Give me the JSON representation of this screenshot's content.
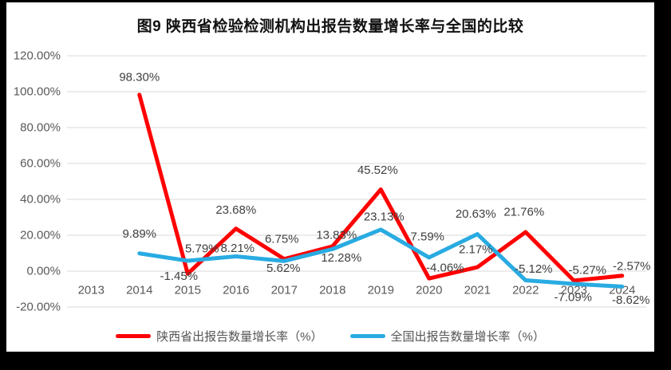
{
  "window": {
    "outer_background": "#000000",
    "canvas_background": "#ffffff"
  },
  "chart_data": {
    "type": "line",
    "title": "图9 陕西省检验检测机构出报告数量增长率与全国的比较",
    "xlabel": "",
    "ylabel": "",
    "categories": [
      "2013",
      "2014",
      "2015",
      "2016",
      "2017",
      "2018",
      "2019",
      "2020",
      "2021",
      "2022",
      "2023",
      "2024"
    ],
    "ylim": [
      -20,
      120
    ],
    "ytick_step": 20,
    "yticks": [
      {
        "value": 120,
        "label": "120.00%"
      },
      {
        "value": 100,
        "label": "100.00%"
      },
      {
        "value": 80,
        "label": "80.00%"
      },
      {
        "value": 60,
        "label": "60.00%"
      },
      {
        "value": 40,
        "label": "40.00%"
      },
      {
        "value": 20,
        "label": "20.00%"
      },
      {
        "value": 0,
        "label": "0.00%"
      },
      {
        "value": -20,
        "label": "-20.00%"
      }
    ],
    "grid": true,
    "grid_color": "#D9D9D9",
    "axis_text_color": "#595959",
    "label_text_color": "#404040",
    "legend_position": "bottom",
    "series": [
      {
        "name": "陕西省出报告数量增长率（%）",
        "color": "#FF0000",
        "values": [
          null,
          98.3,
          -1.45,
          23.68,
          6.75,
          13.83,
          45.52,
          -4.06,
          2.17,
          21.76,
          -5.27,
          -2.57
        ],
        "labels": [
          null,
          "98.30%",
          "-1.45%",
          "23.68%",
          "6.75%",
          "13.83%",
          "45.52%",
          "-4.06%",
          "2.17%",
          "21.76%",
          "-5.27%",
          "-2.57%"
        ],
        "label_offsets": [
          null,
          [
            0,
            -22
          ],
          [
            -11,
            3
          ],
          [
            0,
            -23
          ],
          [
            -3,
            -25
          ],
          [
            5,
            -14
          ],
          [
            -4,
            -24
          ],
          [
            20,
            -13
          ],
          [
            -2,
            -22
          ],
          [
            -2,
            -25
          ],
          [
            17,
            -13
          ],
          [
            12,
            -12
          ]
        ]
      },
      {
        "name": "全国出报告数量增长率（%）",
        "color": "#29ABE2",
        "values": [
          null,
          9.89,
          5.79,
          8.21,
          5.62,
          12.28,
          23.13,
          7.59,
          20.63,
          -5.12,
          -7.09,
          -8.62
        ],
        "labels": [
          null,
          "9.89%",
          "5.79%",
          "8.21%",
          "5.62%",
          "12.28%",
          "23.13%",
          "7.59%",
          "20.63%",
          "-5.12%",
          "-7.09%",
          "-8.62%"
        ],
        "label_offsets": [
          null,
          [
            0,
            -24
          ],
          [
            18,
            -15
          ],
          [
            2,
            -10
          ],
          [
            -1,
            9
          ],
          [
            11,
            11
          ],
          [
            4,
            -16
          ],
          [
            -2,
            -26
          ],
          [
            -2,
            -25
          ],
          [
            10,
            -14
          ],
          [
            -1,
            17
          ],
          [
            11,
            17
          ]
        ]
      }
    ]
  }
}
